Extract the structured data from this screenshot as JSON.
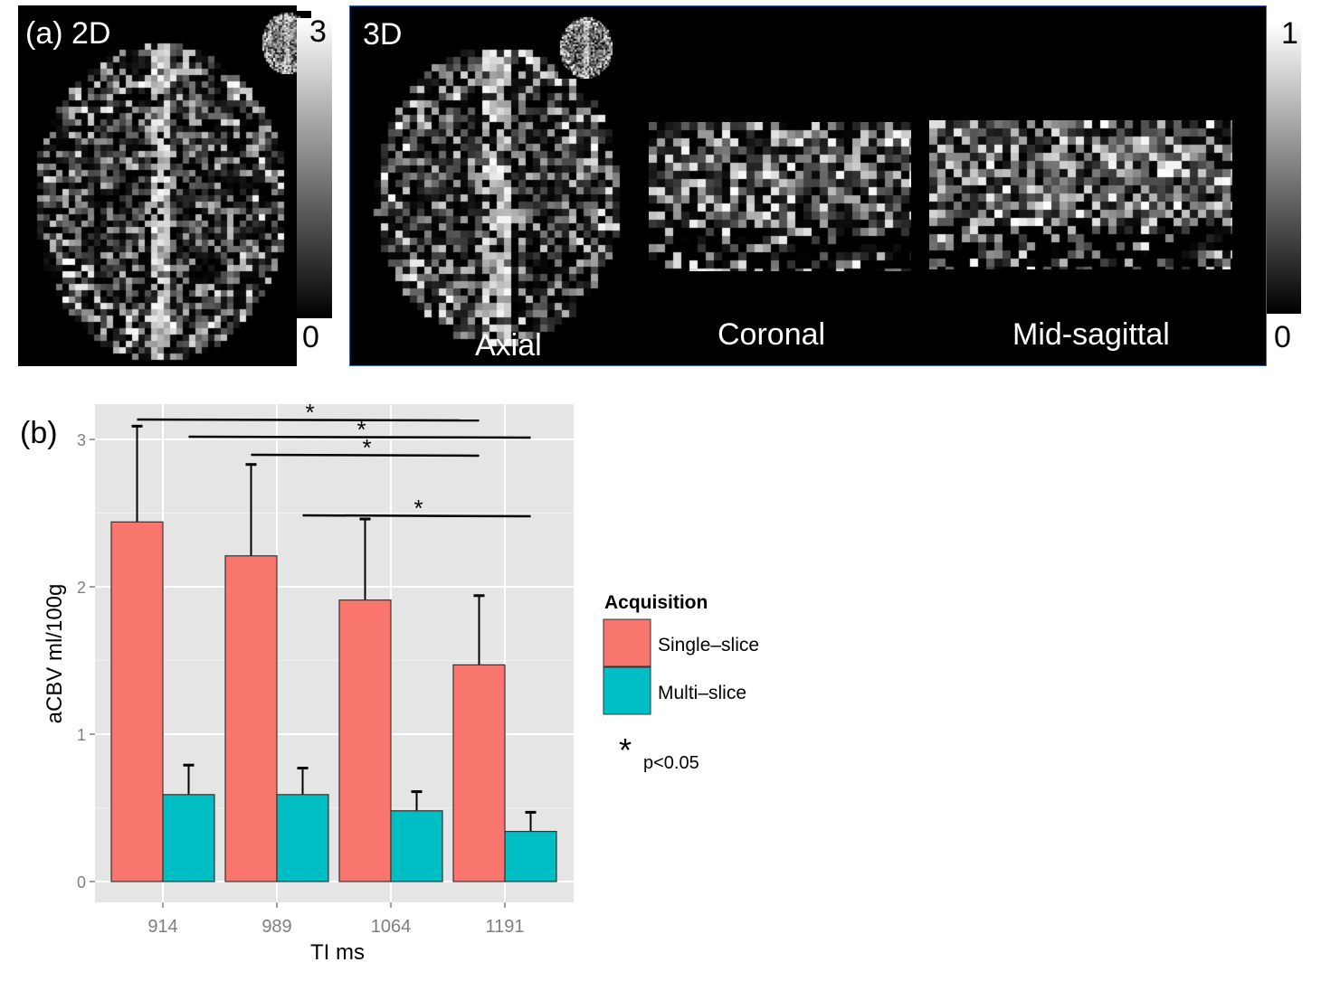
{
  "panel_a": {
    "label": "(a) 2D",
    "colorbar": {
      "max": "3",
      "min": "0"
    }
  },
  "panel_3d": {
    "label": "3D",
    "views": [
      "Axial",
      "Coronal",
      "Mid-sagittal"
    ],
    "colorbar": {
      "max": "1",
      "min": "0"
    },
    "border_color": "#3a5fa8"
  },
  "panel_b": {
    "label": "(b)"
  },
  "chart_data": {
    "type": "bar",
    "xlabel": "TI ms",
    "ylabel": "aCBV ml/100g",
    "categories": [
      "914",
      "989",
      "1064",
      "1191"
    ],
    "y_ticks": [
      "0",
      "1",
      "2",
      "3"
    ],
    "ylim": [
      -0.14,
      3.24
    ],
    "grid": true,
    "legend": {
      "title": "Acquisition",
      "placement": "right"
    },
    "series": [
      {
        "name": "Single–slice",
        "color": "#f8766d",
        "values": [
          2.44,
          2.21,
          1.91,
          1.47
        ],
        "error_upper": [
          3.09,
          2.83,
          2.46,
          1.94
        ]
      },
      {
        "name": "Multi–slice",
        "color": "#00bfc4",
        "values": [
          0.59,
          0.59,
          0.48,
          0.34
        ],
        "error_upper": [
          0.79,
          0.77,
          0.61,
          0.47
        ]
      }
    ],
    "significance": [
      {
        "from": [
          "914",
          "Single–slice"
        ],
        "to": [
          "1191",
          "Single–slice"
        ],
        "mark": "*"
      },
      {
        "from": [
          "914",
          "Multi–slice"
        ],
        "to": [
          "1191",
          "Multi–slice"
        ],
        "mark": "*"
      },
      {
        "from": [
          "989",
          "Single–slice"
        ],
        "to": [
          "1191",
          "Single–slice"
        ],
        "mark": "*"
      },
      {
        "from": [
          "989",
          "Multi–slice"
        ],
        "to": [
          "1191",
          "Multi–slice"
        ],
        "mark": "*"
      }
    ],
    "significance_note": {
      "mark": "*",
      "text": "p<0.05"
    }
  }
}
